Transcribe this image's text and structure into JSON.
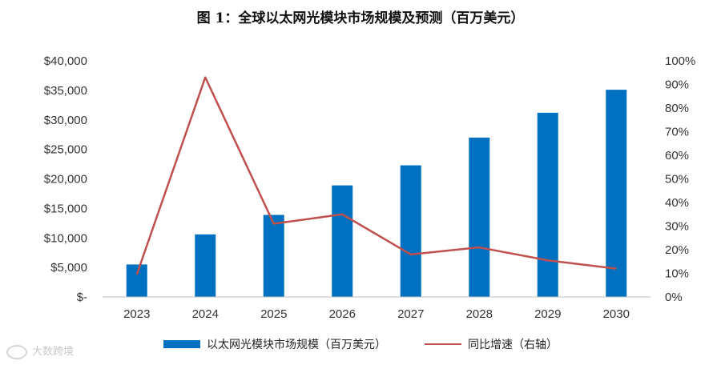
{
  "chart_data": {
    "type": "bar",
    "title": "图 1：全球以太网光模块市场规模及预测（百万美元）",
    "categories": [
      "2023",
      "2024",
      "2025",
      "2026",
      "2027",
      "2028",
      "2029",
      "2030"
    ],
    "series": [
      {
        "name": "以太网光模块市场规模（百万美元）",
        "type": "bar",
        "axis": "left",
        "values": [
          5500,
          10600,
          13900,
          18900,
          22300,
          27000,
          31200,
          35100
        ]
      },
      {
        "name": "同比增速（右轴）",
        "type": "line",
        "axis": "right",
        "values": [
          9.5,
          93,
          31,
          35,
          18,
          21,
          15.5,
          12
        ]
      }
    ],
    "left_axis": {
      "ylim": [
        0,
        40000
      ],
      "tick_labels": [
        "$-",
        "$5,000",
        "$10,000",
        "$15,000",
        "$20,000",
        "$25,000",
        "$30,000",
        "$35,000",
        "$40,000"
      ]
    },
    "right_axis": {
      "ylim": [
        0,
        100
      ],
      "tick_labels": [
        "0%",
        "10%",
        "20%",
        "30%",
        "40%",
        "50%",
        "60%",
        "70%",
        "80%",
        "90%",
        "100%"
      ]
    },
    "colors": {
      "bar": "#0070C0",
      "line": "#C0504D"
    },
    "legend": "bottom",
    "grid": false
  },
  "watermark": "大数跨境"
}
